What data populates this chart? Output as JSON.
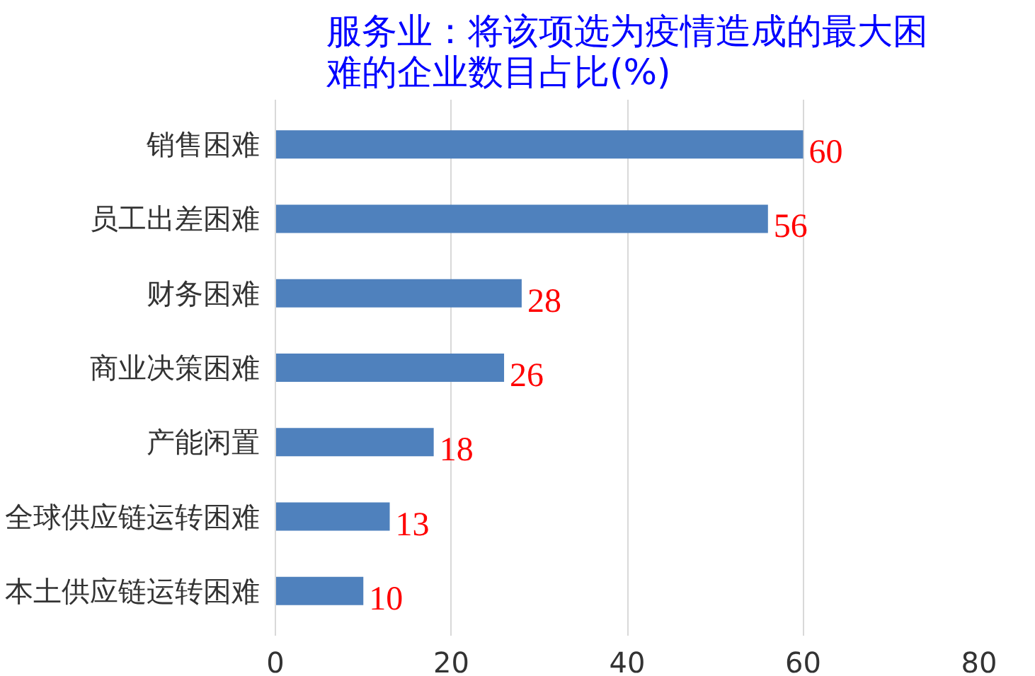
{
  "chart_data": {
    "type": "bar",
    "orientation": "horizontal",
    "title": "服务业：将该项选为疫情造成的最大困难的企业数目占比(%)",
    "categories": [
      "销售困难",
      "员工出差困难",
      "财务困难",
      "商业决策困难",
      "产能闲置",
      "全球供应链运转困难",
      "本土供应链运转困难"
    ],
    "values": [
      60,
      56,
      28,
      26,
      18,
      13,
      10
    ],
    "color": "#4f81bd",
    "xlim": [
      0,
      80
    ],
    "xticks": [
      0,
      20,
      40,
      60,
      80
    ],
    "grid": "x",
    "data_labels": true
  }
}
